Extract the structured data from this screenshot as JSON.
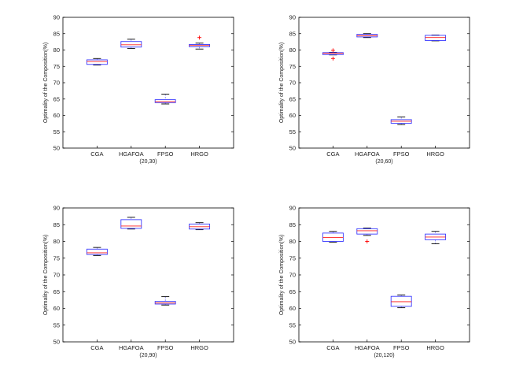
{
  "figure": {
    "colors": {
      "box": "#3a3aff",
      "median": "#ff2020",
      "whisker": "#6666ff",
      "outlier": "#ff0000",
      "axis": "#000000"
    }
  },
  "chart_data": [
    {
      "type": "box",
      "subtitle": "(20,30)",
      "ylabel": "Optimality of the Composition(%)",
      "ylim": [
        50,
        90
      ],
      "yticks": [
        50,
        55,
        60,
        65,
        70,
        75,
        80,
        85,
        90
      ],
      "categories": [
        "CGA",
        "HGAFOA",
        "FPSO",
        "HRGO"
      ],
      "boxes": [
        {
          "min": 75.4,
          "q1": 75.6,
          "median": 76.5,
          "q3": 77.0,
          "max": 77.4,
          "outliers": []
        },
        {
          "min": 80.5,
          "q1": 80.9,
          "median": 81.6,
          "q3": 82.6,
          "max": 83.3,
          "outliers": []
        },
        {
          "min": 63.5,
          "q1": 63.9,
          "median": 64.2,
          "q3": 64.8,
          "max": 66.5,
          "outliers": []
        },
        {
          "min": 80.3,
          "q1": 81.0,
          "median": 81.4,
          "q3": 81.7,
          "max": 82.1,
          "outliers": [
            83.8
          ]
        }
      ]
    },
    {
      "type": "box",
      "subtitle": "(20,60)",
      "ylabel": "Optimality of the Composition(%)",
      "ylim": [
        50,
        90
      ],
      "yticks": [
        50,
        55,
        60,
        65,
        70,
        75,
        80,
        85,
        90
      ],
      "categories": [
        "CGA",
        "HGAFOA",
        "FPSO",
        "HRGO"
      ],
      "boxes": [
        {
          "min": 78.5,
          "q1": 78.6,
          "median": 79.0,
          "q3": 79.2,
          "max": 79.3,
          "outliers": [
            79.9,
            77.4
          ]
        },
        {
          "min": 83.8,
          "q1": 84.0,
          "median": 84.4,
          "q3": 84.8,
          "max": 85.0,
          "outliers": []
        },
        {
          "min": 57.2,
          "q1": 57.6,
          "median": 58.2,
          "q3": 58.7,
          "max": 59.5,
          "outliers": []
        },
        {
          "min": 82.8,
          "q1": 82.9,
          "median": 83.8,
          "q3": 84.5,
          "max": 84.6,
          "outliers": []
        }
      ]
    },
    {
      "type": "box",
      "subtitle": "(20,90)",
      "ylabel": "Optimality of the Composition(%)",
      "ylim": [
        50,
        90
      ],
      "yticks": [
        50,
        55,
        60,
        65,
        70,
        75,
        80,
        85,
        90
      ],
      "categories": [
        "CGA",
        "HGAFOA",
        "FPSO",
        "HRGO"
      ],
      "boxes": [
        {
          "min": 75.8,
          "q1": 76.1,
          "median": 76.6,
          "q3": 77.7,
          "max": 78.2,
          "outliers": []
        },
        {
          "min": 83.7,
          "q1": 83.9,
          "median": 84.6,
          "q3": 86.5,
          "max": 87.2,
          "outliers": []
        },
        {
          "min": 61.0,
          "q1": 61.3,
          "median": 61.6,
          "q3": 62.1,
          "max": 63.5,
          "outliers": []
        },
        {
          "min": 83.5,
          "q1": 83.7,
          "median": 84.4,
          "q3": 85.2,
          "max": 85.6,
          "outliers": []
        }
      ]
    },
    {
      "type": "box",
      "subtitle": "(20,120)",
      "ylabel": "Optimality of the Composition(%)",
      "ylim": [
        50,
        90
      ],
      "yticks": [
        50,
        55,
        60,
        65,
        70,
        75,
        80,
        85,
        90
      ],
      "categories": [
        "CGA",
        "HGAFOA",
        "FPSO",
        "HRGO"
      ],
      "boxes": [
        {
          "min": 79.8,
          "q1": 80.0,
          "median": 81.2,
          "q3": 82.5,
          "max": 83.0,
          "outliers": []
        },
        {
          "min": 81.8,
          "q1": 82.2,
          "median": 83.2,
          "q3": 83.8,
          "max": 84.0,
          "outliers": [
            80.0
          ]
        },
        {
          "min": 60.2,
          "q1": 60.6,
          "median": 62.0,
          "q3": 63.6,
          "max": 64.0,
          "outliers": []
        },
        {
          "min": 79.3,
          "q1": 80.5,
          "median": 81.3,
          "q3": 82.2,
          "max": 83.0,
          "outliers": []
        }
      ]
    }
  ]
}
